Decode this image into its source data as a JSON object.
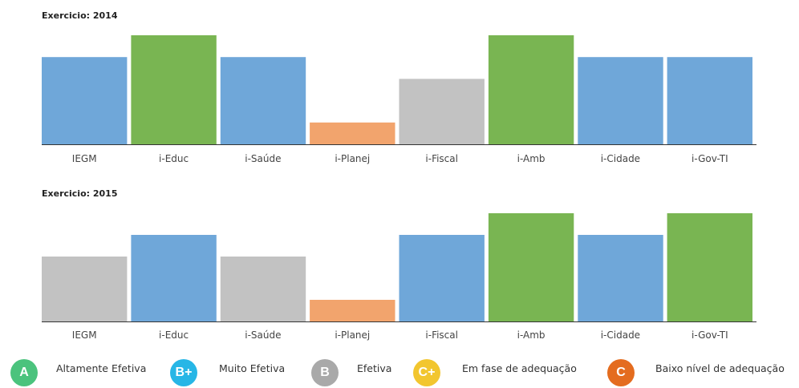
{
  "colors": {
    "A": "#79b552",
    "B+": "#6fa7d9",
    "B": "#c2c2c2",
    "C+": "#f2a46d",
    "C": "#e07024"
  },
  "chart_data": [
    {
      "type": "bar",
      "title": "Exercicio: 2014",
      "categories": [
        "IEGM",
        "i-Educ",
        "i-Saúde",
        "i-Planej",
        "i-Fiscal",
        "i-Amb",
        "i-Cidade",
        "i-Gov-TI"
      ],
      "values": [
        4,
        5,
        4,
        1,
        3,
        5,
        4,
        4
      ],
      "grades": [
        "B+",
        "A",
        "B+",
        "C+",
        "B",
        "A",
        "B+",
        "B+"
      ],
      "ylim": [
        0,
        5
      ],
      "grid": false
    },
    {
      "type": "bar",
      "title": "Exercicio: 2015",
      "categories": [
        "IEGM",
        "i-Educ",
        "i-Saúde",
        "i-Planej",
        "i-Fiscal",
        "i-Amb",
        "i-Cidade",
        "i-Gov-TI"
      ],
      "values": [
        3,
        4,
        3,
        1,
        4,
        5,
        4,
        5
      ],
      "grades": [
        "B",
        "B+",
        "B",
        "C+",
        "B+",
        "A",
        "B+",
        "A"
      ],
      "ylim": [
        0,
        5
      ],
      "grid": false
    }
  ],
  "legend": [
    {
      "badge": "A",
      "label": "Altamente Efetiva",
      "color": "#4bc37d"
    },
    {
      "badge": "B+",
      "label": "Muito Efetiva",
      "color": "#27b6e6"
    },
    {
      "badge": "B",
      "label": "Efetiva",
      "color": "#a9a9a9"
    },
    {
      "badge": "C+",
      "label": "Em fase de adequação",
      "color": "#f2c62f"
    },
    {
      "badge": "C",
      "label": "Baixo nível de adequação",
      "color": "#e46c1f"
    }
  ]
}
